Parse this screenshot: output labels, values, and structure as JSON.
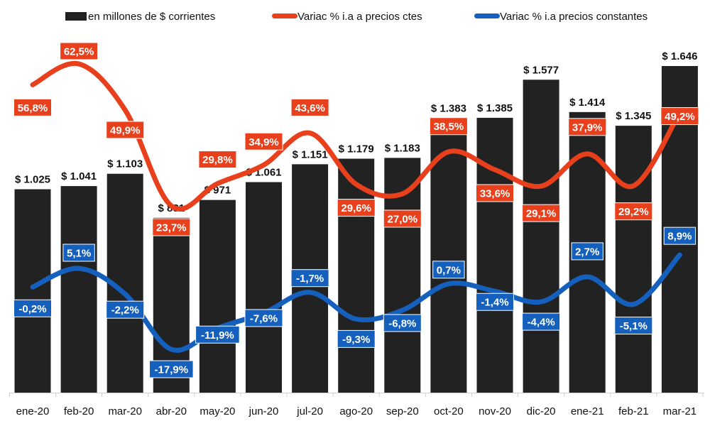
{
  "chart_data": {
    "type": "bar",
    "title": "",
    "xlabel": "",
    "ylabel": "",
    "grid": false,
    "legend_position": "top",
    "ylim": [
      0,
      1700
    ],
    "categories": [
      "ene-20",
      "feb-20",
      "mar-20",
      "abr-20",
      "may-20",
      "jun-20",
      "jul-20",
      "ago-20",
      "sep-20",
      "oct-20",
      "nov-20",
      "dic-20",
      "ene-21",
      "feb-21",
      "mar-21"
    ],
    "series": [
      {
        "name": "en millones de $ corrientes",
        "kind": "bar",
        "color": "#222222",
        "values": [
          1025,
          1041,
          1103,
          881,
          971,
          1061,
          1151,
          1179,
          1183,
          1383,
          1385,
          1577,
          1414,
          1345,
          1646
        ],
        "labels": [
          "$ 1.025",
          "$ 1.041",
          "$ 1.103",
          "$ 881",
          "$ 971",
          "$ 1.061",
          "$ 1.151",
          "$ 1.179",
          "$ 1.183",
          "$ 1.383",
          "$ 1.385",
          "$ 1.577",
          "$ 1.414",
          "$ 1.345",
          "$ 1.646"
        ]
      },
      {
        "name": "Variac % i.a a precios ctes",
        "kind": "line",
        "color": "#E8401C",
        "values": [
          56.8,
          62.5,
          49.9,
          23.7,
          29.8,
          34.9,
          43.6,
          29.6,
          27.0,
          38.5,
          33.6,
          29.1,
          37.9,
          29.2,
          49.2
        ],
        "labels": [
          "56,8%",
          "62,5%",
          "49,9%",
          "23,7%",
          "29,8%",
          "34,9%",
          "43,6%",
          "29,6%",
          "27,0%",
          "38,5%",
          "33,6%",
          "29,1%",
          "37,9%",
          "29,2%",
          "49,2%"
        ]
      },
      {
        "name": "Variac % i.a precios constantes",
        "kind": "line",
        "color": "#1560BD",
        "values": [
          -0.2,
          5.1,
          -2.2,
          -17.9,
          -11.9,
          -7.6,
          -1.7,
          -9.3,
          -6.8,
          0.7,
          -1.4,
          -4.4,
          2.7,
          -5.1,
          8.9
        ],
        "labels": [
          "-0,2%",
          "5,1%",
          "-2,2%",
          "-17,9%",
          "-11,9%",
          "-7,6%",
          "-1,7%",
          "-9,3%",
          "-6,8%",
          "0,7%",
          "-1,4%",
          "-4,4%",
          "2,7%",
          "-5,1%",
          "8,9%"
        ]
      }
    ]
  }
}
